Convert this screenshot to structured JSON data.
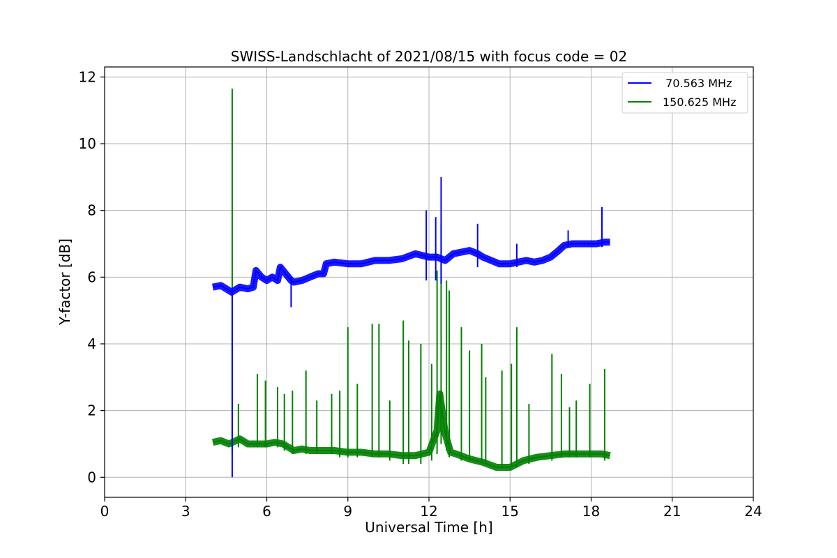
{
  "chart_data": {
    "type": "line",
    "title": "SWISS-Landschlacht of 2021/08/15 with focus code = 02",
    "xlabel": "Universal Time [h]",
    "ylabel": "Y-factor [dB]",
    "xlim": [
      0,
      24
    ],
    "ylim": [
      -0.6,
      12.3
    ],
    "xticks": [
      0,
      3,
      6,
      9,
      12,
      15,
      18,
      21,
      24
    ],
    "yticks": [
      0,
      2,
      4,
      6,
      8,
      10,
      12
    ],
    "xtick_labels": [
      "0",
      "3",
      "6",
      "9",
      "12",
      "15",
      "18",
      "21",
      "24"
    ],
    "ytick_labels": [
      "0",
      "2",
      "4",
      "6",
      "8",
      "10",
      "12"
    ],
    "grid": true,
    "legend_position": "top-right",
    "series": [
      {
        "name": "  70.563 MHz",
        "color": "#0000ff",
        "x": [
          4.0,
          4.3,
          4.6,
          4.7,
          5.0,
          5.3,
          5.5,
          5.6,
          5.8,
          6.0,
          6.2,
          6.4,
          6.5,
          6.7,
          6.9,
          7.0,
          7.3,
          7.6,
          7.9,
          8.1,
          8.2,
          8.5,
          9.0,
          9.5,
          10.0,
          10.5,
          11.0,
          11.5,
          12.0,
          12.3,
          12.6,
          12.9,
          13.2,
          13.5,
          13.8,
          14.0,
          14.3,
          14.6,
          15.0,
          15.3,
          15.6,
          15.9,
          16.2,
          16.5,
          16.8,
          17.0,
          17.3,
          17.6,
          17.9,
          18.2,
          18.5,
          18.7
        ],
        "values": [
          5.7,
          5.75,
          5.6,
          5.55,
          5.7,
          5.65,
          5.7,
          6.2,
          6.0,
          5.9,
          6.0,
          5.9,
          6.3,
          6.1,
          5.9,
          5.85,
          5.9,
          6.0,
          6.1,
          6.1,
          6.4,
          6.45,
          6.4,
          6.4,
          6.5,
          6.5,
          6.55,
          6.7,
          6.6,
          6.6,
          6.5,
          6.7,
          6.75,
          6.8,
          6.7,
          6.6,
          6.5,
          6.4,
          6.4,
          6.45,
          6.5,
          6.45,
          6.5,
          6.6,
          6.8,
          6.95,
          7.0,
          7.0,
          7.0,
          7.0,
          7.05,
          7.05
        ],
        "spikes": [
          {
            "x": 4.72,
            "low": 0.0,
            "high": 5.5
          },
          {
            "x": 6.9,
            "low": 5.1,
            "high": 6.0
          },
          {
            "x": 12.45,
            "low": 5.8,
            "high": 9.0
          },
          {
            "x": 11.9,
            "low": 5.9,
            "high": 8.0
          },
          {
            "x": 12.25,
            "low": 5.9,
            "high": 7.8
          },
          {
            "x": 13.8,
            "low": 6.3,
            "high": 7.6
          },
          {
            "x": 15.25,
            "low": 6.3,
            "high": 7.0
          },
          {
            "x": 17.15,
            "low": 6.9,
            "high": 7.4
          },
          {
            "x": 18.4,
            "low": 6.9,
            "high": 8.1
          }
        ]
      },
      {
        "name": "150.625 MHz",
        "color": "#008000",
        "x": [
          4.0,
          4.3,
          4.6,
          5.0,
          5.3,
          5.6,
          6.0,
          6.3,
          6.6,
          7.0,
          7.3,
          7.6,
          8.0,
          8.5,
          9.0,
          9.5,
          10.0,
          10.5,
          11.0,
          11.5,
          12.0,
          12.3,
          12.4,
          12.6,
          12.8,
          13.0,
          13.5,
          14.0,
          14.5,
          15.0,
          15.5,
          16.0,
          16.5,
          17.0,
          17.5,
          18.0,
          18.4,
          18.7
        ],
        "values": [
          1.05,
          1.1,
          1.0,
          1.15,
          1.0,
          1.0,
          1.0,
          1.05,
          1.0,
          0.8,
          0.85,
          0.8,
          0.8,
          0.8,
          0.75,
          0.75,
          0.7,
          0.7,
          0.65,
          0.65,
          0.75,
          1.4,
          2.5,
          1.3,
          0.75,
          0.7,
          0.55,
          0.45,
          0.3,
          0.3,
          0.5,
          0.6,
          0.65,
          0.7,
          0.7,
          0.7,
          0.7,
          0.65
        ],
        "spikes": [
          {
            "x": 4.72,
            "low": 0.7,
            "high": 11.65
          },
          {
            "x": 4.95,
            "low": 0.9,
            "high": 2.2
          },
          {
            "x": 5.65,
            "low": 0.9,
            "high": 3.1
          },
          {
            "x": 5.95,
            "low": 0.9,
            "high": 2.9
          },
          {
            "x": 6.4,
            "low": 0.9,
            "high": 2.7
          },
          {
            "x": 6.65,
            "low": 0.8,
            "high": 2.5
          },
          {
            "x": 6.95,
            "low": 0.7,
            "high": 2.6
          },
          {
            "x": 7.45,
            "low": 0.7,
            "high": 3.2
          },
          {
            "x": 7.85,
            "low": 0.7,
            "high": 2.3
          },
          {
            "x": 8.4,
            "low": 0.7,
            "high": 2.5
          },
          {
            "x": 8.7,
            "low": 0.6,
            "high": 2.6
          },
          {
            "x": 9.0,
            "low": 0.6,
            "high": 4.5
          },
          {
            "x": 9.35,
            "low": 0.6,
            "high": 2.8
          },
          {
            "x": 9.9,
            "low": 0.6,
            "high": 4.6
          },
          {
            "x": 10.15,
            "low": 0.6,
            "high": 4.6
          },
          {
            "x": 10.55,
            "low": 0.5,
            "high": 2.3
          },
          {
            "x": 11.05,
            "low": 0.4,
            "high": 4.7
          },
          {
            "x": 11.25,
            "low": 0.4,
            "high": 4.1
          },
          {
            "x": 11.7,
            "low": 0.4,
            "high": 4.0
          },
          {
            "x": 12.1,
            "low": 0.5,
            "high": 3.4
          },
          {
            "x": 12.3,
            "low": 0.7,
            "high": 6.2
          },
          {
            "x": 12.45,
            "low": 1.0,
            "high": 7.6
          },
          {
            "x": 12.65,
            "low": 0.8,
            "high": 5.9
          },
          {
            "x": 12.75,
            "low": 0.6,
            "high": 5.6
          },
          {
            "x": 13.2,
            "low": 0.5,
            "high": 4.5
          },
          {
            "x": 13.5,
            "low": 0.5,
            "high": 3.8
          },
          {
            "x": 13.95,
            "low": 0.4,
            "high": 4.0
          },
          {
            "x": 14.1,
            "low": 0.4,
            "high": 3.0
          },
          {
            "x": 14.7,
            "low": 0.3,
            "high": 3.2
          },
          {
            "x": 15.05,
            "low": 0.3,
            "high": 3.4
          },
          {
            "x": 15.25,
            "low": 0.3,
            "high": 4.5
          },
          {
            "x": 15.7,
            "low": 0.4,
            "high": 2.2
          },
          {
            "x": 16.55,
            "low": 0.5,
            "high": 3.7
          },
          {
            "x": 16.9,
            "low": 0.6,
            "high": 3.1
          },
          {
            "x": 17.2,
            "low": 0.6,
            "high": 2.1
          },
          {
            "x": 17.45,
            "low": 0.6,
            "high": 2.3
          },
          {
            "x": 17.95,
            "low": 0.6,
            "high": 2.8
          },
          {
            "x": 18.5,
            "low": 0.5,
            "high": 3.25
          }
        ]
      }
    ]
  }
}
